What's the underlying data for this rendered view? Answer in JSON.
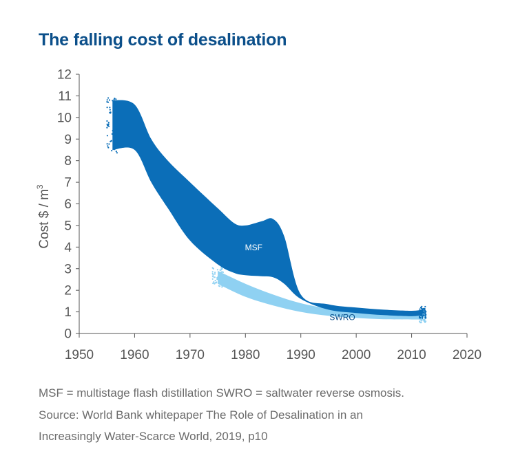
{
  "title": "The falling cost of desalination",
  "chart_data": {
    "type": "area",
    "title": "The falling cost of desalination",
    "xlabel": "",
    "ylabel": "Cost $ / m",
    "ylabel_superscript": "3",
    "xlim": [
      1950,
      2020
    ],
    "ylim": [
      0,
      12
    ],
    "x_ticks": [
      "1950",
      "1960",
      "1970",
      "1980",
      "1990",
      "2000",
      "2010",
      "2020"
    ],
    "y_ticks": [
      "0",
      "1",
      "2",
      "3",
      "4",
      "5",
      "6",
      "7",
      "8",
      "9",
      "10",
      "11",
      "12"
    ],
    "grid": false,
    "series": [
      {
        "name": "SWRO",
        "color": "#8fd1f2",
        "x": [
          1975,
          1980,
          1985,
          1990,
          1995,
          2000,
          2005,
          2010,
          2012
        ],
        "upper": [
          2.9,
          2.3,
          1.8,
          1.4,
          1.15,
          0.98,
          0.9,
          0.88,
          0.9
        ],
        "lower": [
          2.3,
          1.7,
          1.3,
          1.0,
          0.82,
          0.72,
          0.66,
          0.65,
          0.65
        ]
      },
      {
        "name": "MSF",
        "color": "#0b6eb8",
        "x": [
          1956,
          1960,
          1963,
          1966,
          1970,
          1975,
          1978,
          1980,
          1983,
          1985,
          1987,
          1990,
          1995,
          2000,
          2005,
          2010,
          2012
        ],
        "upper": [
          10.8,
          10.6,
          9.0,
          8.0,
          7.0,
          5.8,
          5.1,
          5.0,
          5.2,
          5.3,
          4.5,
          1.8,
          1.35,
          1.2,
          1.1,
          1.05,
          1.1
        ],
        "lower": [
          8.5,
          8.5,
          7.0,
          5.8,
          4.3,
          3.2,
          2.8,
          2.7,
          2.65,
          2.6,
          2.3,
          1.6,
          1.1,
          0.95,
          0.85,
          0.8,
          0.85
        ]
      }
    ]
  },
  "notes": {
    "line1": "MSF = multistage flash distillation SWRO = saltwater reverse osmosis.",
    "line2": "Source: World Bank whitepaper The Role of Desalination in an",
    "line3": "Increasingly Water-Scarce World, 2019, p10"
  }
}
